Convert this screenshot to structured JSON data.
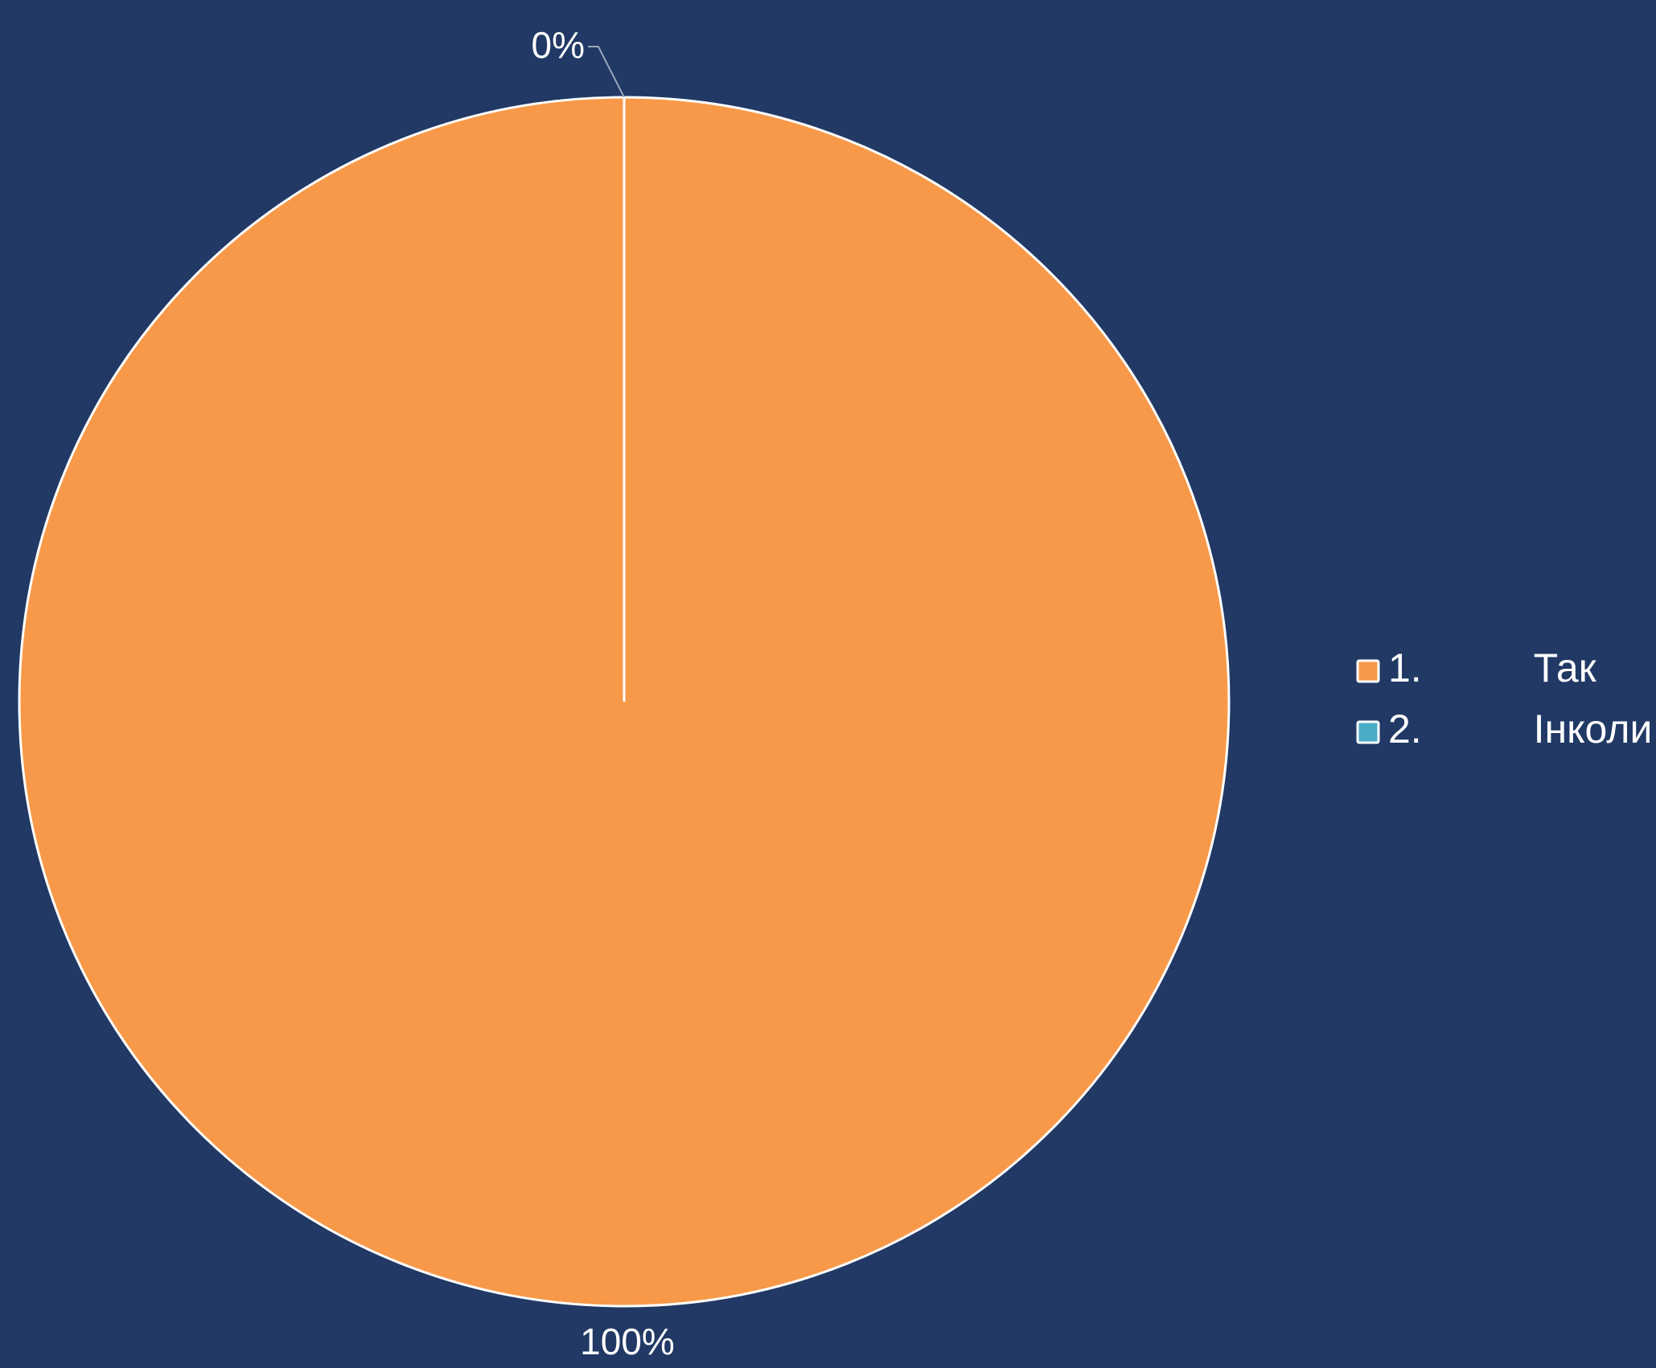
{
  "chart_data": {
    "type": "pie",
    "title": "",
    "categories": [
      "1.          Так",
      "2.          Інколи"
    ],
    "values": [
      100,
      0
    ],
    "data_labels": [
      "100%",
      "0%"
    ],
    "colors": [
      "#f79949",
      "#4bacc6"
    ],
    "start_angle_deg": 0,
    "direction": "clockwise",
    "legend_position": "right"
  },
  "style": {
    "background": "#213964",
    "slice_border": "#ffffff",
    "text_color": "#ffffff",
    "leader_line_color": "#9aa6bb"
  }
}
